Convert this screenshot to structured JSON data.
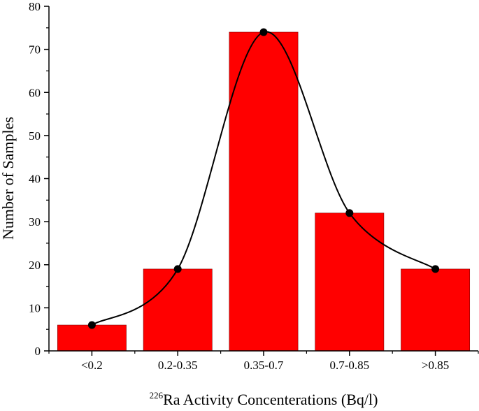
{
  "chart_data": {
    "type": "bar",
    "categories": [
      "<0.2",
      "0.2-0.35",
      "0.35-0.7",
      "0.7-0.85",
      ">0.85"
    ],
    "values": [
      6,
      19,
      74,
      32,
      19
    ],
    "ylim": [
      0,
      80
    ],
    "yticks": [
      0,
      10,
      20,
      30,
      40,
      50,
      60,
      70,
      80
    ],
    "ylabel": "Number of Samples",
    "xlabel_superscript": "226",
    "xlabel": "Ra Activity Concenterations (Bq/l)",
    "grid": false,
    "bar_color": "#ff0000",
    "line_color": "#000000",
    "marker_color": "#000000",
    "overlay": "smooth curve through bar tops with circular markers"
  }
}
